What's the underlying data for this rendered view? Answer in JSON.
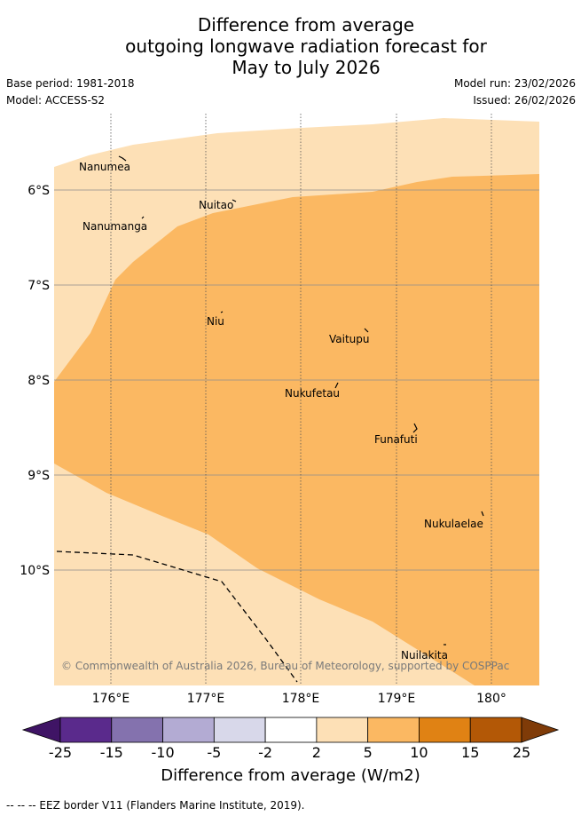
{
  "header": {
    "title_line1": "Difference from average",
    "title_line2": "outgoing longwave radiation forecast for",
    "title_line3": "May to July 2026",
    "base_period": "Base period: 1981-2018",
    "model": "Model: ACCESS-S2",
    "model_run": "Model run: 23/02/2026",
    "issued": "Issued: 26/02/2026"
  },
  "map": {
    "lat_labels": [
      "6°S",
      "7°S",
      "8°S",
      "9°S",
      "10°S"
    ],
    "lon_labels": [
      "176°E",
      "177°E",
      "178°E",
      "179°E",
      "180°"
    ],
    "islands": [
      {
        "name": "Nanumea"
      },
      {
        "name": "Nuitao"
      },
      {
        "name": "Nanumanga"
      },
      {
        "name": "Niu"
      },
      {
        "name": "Vaitupu"
      },
      {
        "name": "Nukufetau"
      },
      {
        "name": "Funafuti"
      },
      {
        "name": "Nukulaelae"
      },
      {
        "name": "Nuilakita"
      }
    ],
    "copyright": "© Commonwealth of Australia 2026, Bureau of Meteorology, supported by COSPPac",
    "zone_colors": {
      "light": "#fde0b6",
      "medium": "#fbb862"
    }
  },
  "colorbar": {
    "ticks": [
      "-25",
      "-15",
      "-10",
      "-5",
      "-2",
      "2",
      "5",
      "10",
      "15",
      "25"
    ],
    "colors": [
      "#3f1465",
      "#5a2a8c",
      "#8472ae",
      "#b3abd3",
      "#d8d8ea",
      "#ffffff",
      "#fde0b6",
      "#fbb862",
      "#e08214",
      "#b35806",
      "#7f3b08"
    ],
    "label": "Difference from average (W/m2)"
  },
  "legend": {
    "eez_text": "-- --  -- EEZ border V11 (Flanders Marine Institute, 2019)."
  }
}
